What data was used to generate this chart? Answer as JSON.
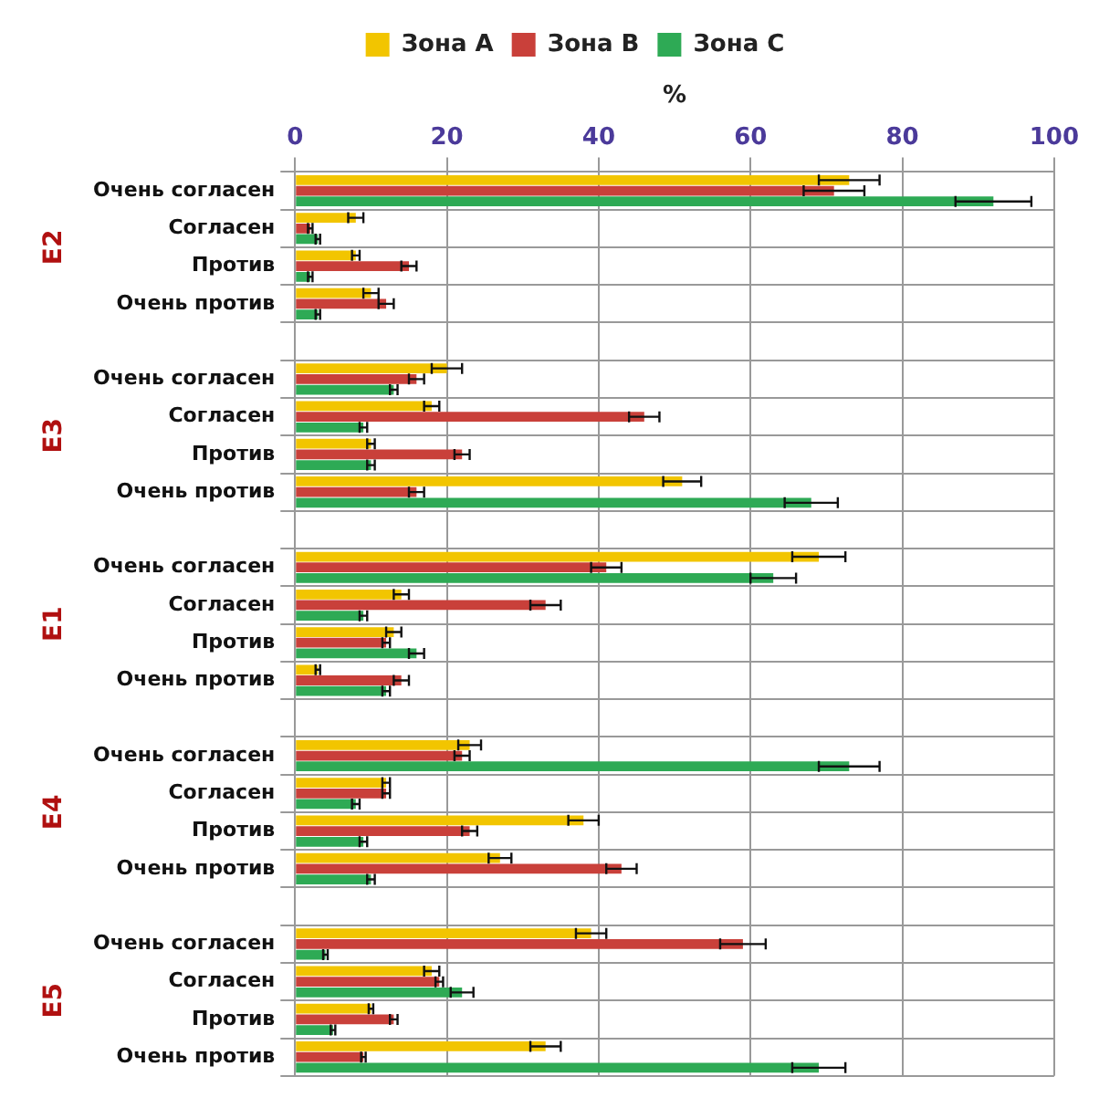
{
  "chart_data": {
    "type": "bar",
    "orientation": "horizontal",
    "xlabel": "%",
    "categories": [
      "Очень согласен",
      "Согласен",
      "Против",
      "Очень против",
      null,
      "Очень согласен",
      "Согласен",
      "Против",
      "Очень против",
      null,
      "Очень согласен",
      "Согласен",
      "Против",
      "Очень против",
      null,
      "Очень согласен",
      "Согласен",
      "Против",
      "Очень против",
      null,
      "Очень согласен",
      "Согласен",
      "Против",
      "Очень против"
    ],
    "series": [
      {
        "name": "Зона A",
        "color": "#f2c500",
        "values": [
          73,
          8,
          8,
          10,
          null,
          20,
          18,
          10,
          51,
          null,
          69,
          14,
          13,
          3,
          null,
          23,
          12,
          38,
          27,
          null,
          39,
          18,
          10,
          33
        ],
        "errors": [
          4,
          1,
          0.5,
          1,
          null,
          2,
          1,
          0.5,
          2.5,
          null,
          3.5,
          1,
          1,
          0.3,
          null,
          1.5,
          0.5,
          2,
          1.5,
          null,
          2,
          1,
          0.3,
          2
        ]
      },
      {
        "name": "Зона B",
        "color": "#c9403a",
        "values": [
          71,
          2,
          15,
          12,
          null,
          16,
          46,
          22,
          16,
          null,
          41,
          33,
          12,
          14,
          null,
          22,
          12,
          23,
          43,
          null,
          59,
          19,
          13,
          9
        ],
        "errors": [
          4,
          0.3,
          1,
          1,
          null,
          1,
          2,
          1,
          1,
          null,
          2,
          2,
          0.5,
          1,
          null,
          1,
          0.5,
          1,
          2,
          null,
          3,
          0.5,
          0.5,
          0.3
        ]
      },
      {
        "name": "Зона C",
        "color": "#2eaa55",
        "values": [
          92,
          3,
          2,
          3,
          null,
          13,
          9,
          10,
          68,
          null,
          63,
          9,
          16,
          12,
          null,
          73,
          8,
          9,
          10,
          null,
          4,
          22,
          5,
          69
        ],
        "errors": [
          5,
          0.3,
          0.3,
          0.3,
          null,
          0.5,
          0.5,
          0.5,
          3.5,
          null,
          3,
          0.5,
          1,
          0.5,
          null,
          4,
          0.5,
          0.5,
          0.5,
          null,
          0.3,
          1.5,
          0.3,
          3.5
        ]
      }
    ],
    "annotations": [
      "E2",
      "E3",
      "E1",
      "E4",
      "E5"
    ],
    "xlim": [
      0,
      100
    ],
    "xticks": [
      0,
      20,
      40,
      60,
      80,
      100
    ],
    "grid": true,
    "legend": "top"
  }
}
